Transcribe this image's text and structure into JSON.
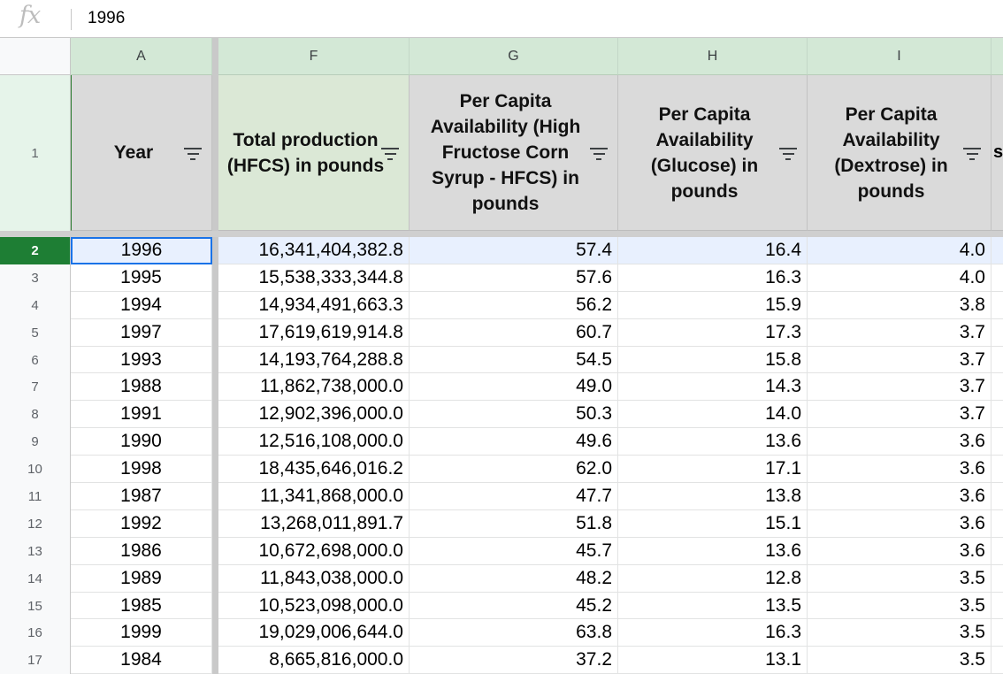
{
  "formula_bar": {
    "fx_icon": "fx",
    "value": "1996"
  },
  "columns": [
    "A",
    "F",
    "G",
    "H",
    "I"
  ],
  "header_row_number": "1",
  "headers": {
    "year": "Year",
    "total_production": "Total production (HFCS) in pounds",
    "per_capita_hfcs": "Per Capita Availability (High Fructose Corn Syrup - HFCS) in pounds",
    "per_capita_glucose": "Per Capita Availability (Glucose) in pounds",
    "per_capita_dextrose": "Per Capita Availability (Dextrose) in pounds",
    "next_col_peek": "s"
  },
  "rows": [
    {
      "row": "2",
      "year": "1996",
      "total": "16,341,404,382.8",
      "hfcs": "57.4",
      "glucose": "16.4",
      "dextrose": "4.0"
    },
    {
      "row": "3",
      "year": "1995",
      "total": "15,538,333,344.8",
      "hfcs": "57.6",
      "glucose": "16.3",
      "dextrose": "4.0"
    },
    {
      "row": "4",
      "year": "1994",
      "total": "14,934,491,663.3",
      "hfcs": "56.2",
      "glucose": "15.9",
      "dextrose": "3.8"
    },
    {
      "row": "5",
      "year": "1997",
      "total": "17,619,619,914.8",
      "hfcs": "60.7",
      "glucose": "17.3",
      "dextrose": "3.7"
    },
    {
      "row": "6",
      "year": "1993",
      "total": "14,193,764,288.8",
      "hfcs": "54.5",
      "glucose": "15.8",
      "dextrose": "3.7"
    },
    {
      "row": "7",
      "year": "1988",
      "total": "11,862,738,000.0",
      "hfcs": "49.0",
      "glucose": "14.3",
      "dextrose": "3.7"
    },
    {
      "row": "8",
      "year": "1991",
      "total": "12,902,396,000.0",
      "hfcs": "50.3",
      "glucose": "14.0",
      "dextrose": "3.7"
    },
    {
      "row": "9",
      "year": "1990",
      "total": "12,516,108,000.0",
      "hfcs": "49.6",
      "glucose": "13.6",
      "dextrose": "3.6"
    },
    {
      "row": "10",
      "year": "1998",
      "total": "18,435,646,016.2",
      "hfcs": "62.0",
      "glucose": "17.1",
      "dextrose": "3.6"
    },
    {
      "row": "11",
      "year": "1987",
      "total": "11,341,868,000.0",
      "hfcs": "47.7",
      "glucose": "13.8",
      "dextrose": "3.6"
    },
    {
      "row": "12",
      "year": "1992",
      "total": "13,268,011,891.7",
      "hfcs": "51.8",
      "glucose": "15.1",
      "dextrose": "3.6"
    },
    {
      "row": "13",
      "year": "1986",
      "total": "10,672,698,000.0",
      "hfcs": "45.7",
      "glucose": "13.6",
      "dextrose": "3.6"
    },
    {
      "row": "14",
      "year": "1989",
      "total": "11,843,038,000.0",
      "hfcs": "48.2",
      "glucose": "12.8",
      "dextrose": "3.5"
    },
    {
      "row": "15",
      "year": "1985",
      "total": "10,523,098,000.0",
      "hfcs": "45.2",
      "glucose": "13.5",
      "dextrose": "3.5"
    },
    {
      "row": "16",
      "year": "1999",
      "total": "19,029,006,644.0",
      "hfcs": "63.8",
      "glucose": "16.3",
      "dextrose": "3.5"
    },
    {
      "row": "17",
      "year": "1984",
      "total": "8,665,816,000.0",
      "hfcs": "37.2",
      "glucose": "13.1",
      "dextrose": "3.5"
    }
  ]
}
